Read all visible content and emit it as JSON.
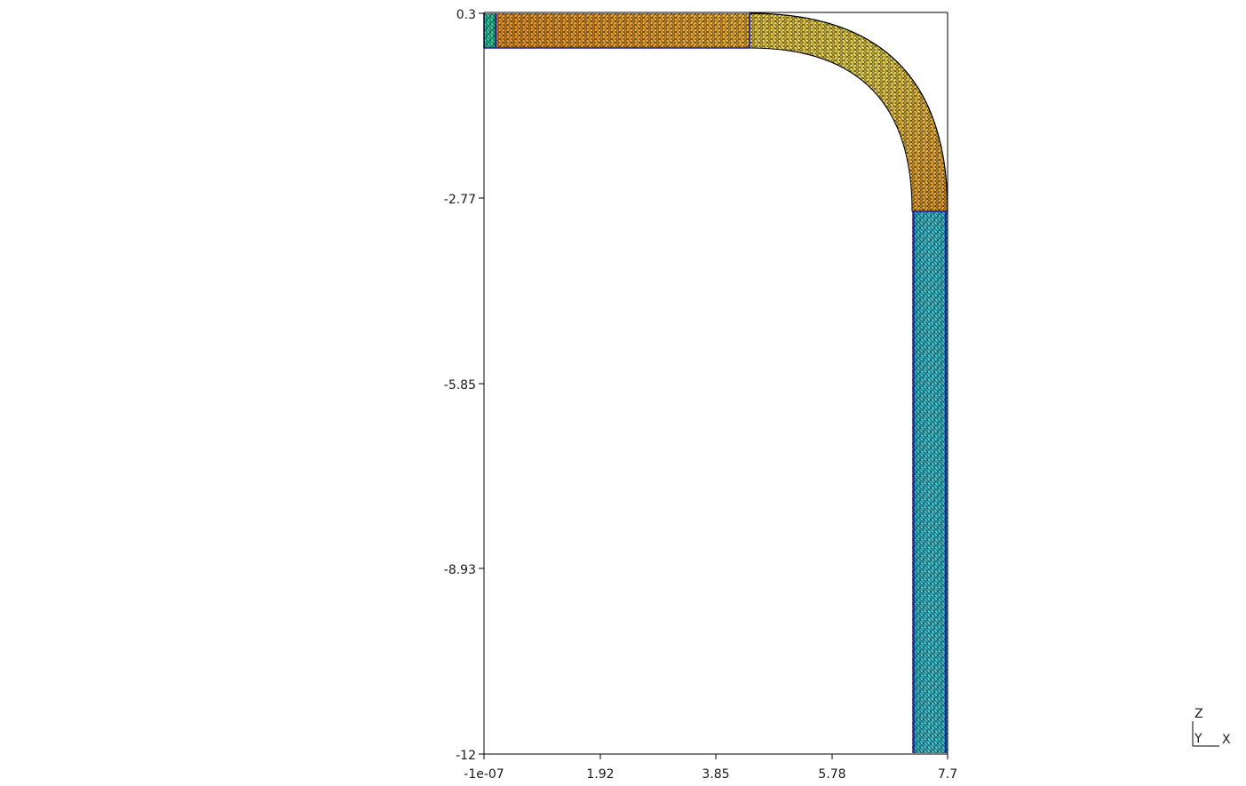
{
  "viewer": {
    "x_ticks": [
      "-1e-07",
      "1.92",
      "3.85",
      "5.78",
      "7.7"
    ],
    "z_ticks": [
      "0.3",
      "-2.77",
      "-5.85",
      "-8.93",
      "-12"
    ],
    "x_range": [
      -1e-07,
      7.7
    ],
    "z_range": [
      -12,
      0.3
    ],
    "triad": {
      "up_label": "Z",
      "depth_label": "Y",
      "right_label": "X"
    },
    "colors": {
      "mesh_edge": "#000000",
      "boundary_edge": "#1a1aa8",
      "frame": "#000000",
      "bend_orange": "#f0a030",
      "bend_yellow": "#ecdc55",
      "pipe_cyan": "#3cc6d2",
      "inlet_green": "#36d0a6"
    }
  }
}
